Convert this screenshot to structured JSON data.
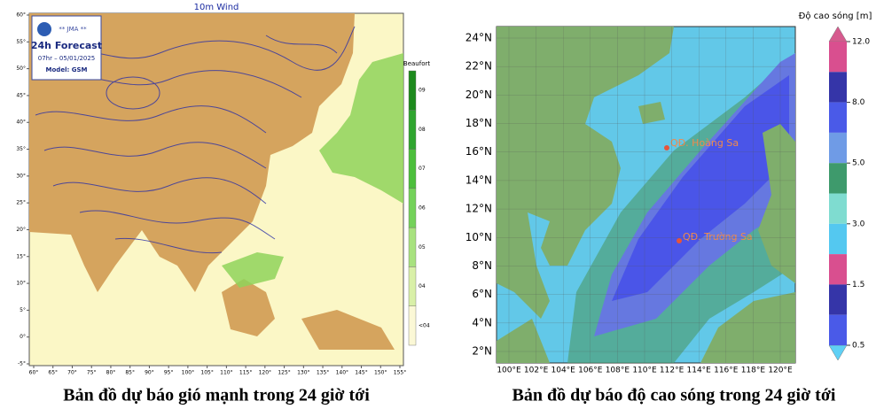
{
  "wind_map": {
    "title": "10m Wind",
    "logo": {
      "agency": "** JMA **",
      "product": "24h Forecast",
      "time": "07hr – 05/01/2025",
      "model": "Model: GSM"
    },
    "colorbar_title": "Beaufort",
    "colorbar_labels": [
      "09",
      "08",
      "07",
      "06",
      "05",
      "04",
      "<04"
    ],
    "lat_ticks": [
      {
        "value": 60,
        "label": "60°"
      },
      {
        "value": 55,
        "label": "55°"
      },
      {
        "value": 50,
        "label": "50°"
      },
      {
        "value": 45,
        "label": "45°"
      },
      {
        "value": 40,
        "label": "40°"
      },
      {
        "value": 35,
        "label": "35°"
      },
      {
        "value": 30,
        "label": "30°"
      },
      {
        "value": 25,
        "label": "25°"
      },
      {
        "value": 20,
        "label": "20°"
      },
      {
        "value": 15,
        "label": "15°"
      },
      {
        "value": 10,
        "label": "10°"
      },
      {
        "value": 5,
        "label": "5°"
      },
      {
        "value": 0,
        "label": "0°"
      },
      {
        "value": -5,
        "label": "-5°"
      }
    ],
    "lon_ticks": [
      {
        "value": 60,
        "label": "60°"
      },
      {
        "value": 65,
        "label": "65°"
      },
      {
        "value": 70,
        "label": "70°"
      },
      {
        "value": 75,
        "label": "75°"
      },
      {
        "value": 80,
        "label": "80°"
      },
      {
        "value": 85,
        "label": "85°"
      },
      {
        "value": 90,
        "label": "90°"
      },
      {
        "value": 95,
        "label": "95°"
      },
      {
        "value": 100,
        "label": "100°"
      },
      {
        "value": 105,
        "label": "105°"
      },
      {
        "value": 110,
        "label": "110°"
      },
      {
        "value": 115,
        "label": "115°"
      },
      {
        "value": 120,
        "label": "120°"
      },
      {
        "value": 125,
        "label": "125°"
      },
      {
        "value": 130,
        "label": "130°"
      },
      {
        "value": 135,
        "label": "135°"
      },
      {
        "value": 140,
        "label": "140°"
      },
      {
        "value": 145,
        "label": "145°"
      },
      {
        "value": 150,
        "label": "150°"
      },
      {
        "value": 155,
        "label": "155°"
      }
    ],
    "latlim": [
      -5,
      60
    ],
    "lonlim": [
      60,
      155
    ],
    "caption": "Bản đồ dự báo gió mạnh trong 24 giờ tới"
  },
  "wave_map": {
    "colorbar_title": "Độ cao sóng [m]",
    "colorbar_ticks": [
      {
        "value": 12,
        "label": "12.0"
      },
      {
        "value": 8,
        "label": "8.0"
      },
      {
        "value": 5,
        "label": "5.0"
      },
      {
        "value": 3,
        "label": "3.0"
      },
      {
        "value": 1.5,
        "label": "1.5"
      },
      {
        "value": 0.5,
        "label": "0.5"
      }
    ],
    "lat_ticks": [
      {
        "value": 24,
        "label": "24°N"
      },
      {
        "value": 22,
        "label": "22°N"
      },
      {
        "value": 20,
        "label": "20°N"
      },
      {
        "value": 18,
        "label": "18°N"
      },
      {
        "value": 16,
        "label": "16°N"
      },
      {
        "value": 14,
        "label": "14°N"
      },
      {
        "value": 12,
        "label": "12°N"
      },
      {
        "value": 10,
        "label": "10°N"
      },
      {
        "value": 8,
        "label": "8°N"
      },
      {
        "value": 6,
        "label": "6°N"
      },
      {
        "value": 4,
        "label": "4°N"
      },
      {
        "value": 2,
        "label": "2°N"
      }
    ],
    "lon_ticks": [
      {
        "value": 100,
        "label": "100°E"
      },
      {
        "value": 102,
        "label": "102°E"
      },
      {
        "value": 104,
        "label": "104°E"
      },
      {
        "value": 106,
        "label": "106°E"
      },
      {
        "value": 108,
        "label": "108°E"
      },
      {
        "value": 110,
        "label": "110°E"
      },
      {
        "value": 112,
        "label": "112°E"
      },
      {
        "value": 114,
        "label": "114°E"
      },
      {
        "value": 116,
        "label": "116°E"
      },
      {
        "value": 118,
        "label": "118°E"
      },
      {
        "value": 120,
        "label": "120°E"
      }
    ],
    "latlim": [
      2,
      24
    ],
    "lonlim": [
      100,
      120
    ],
    "places": [
      "QĐ. Hoàng Sa",
      "QĐ. Trường Sa"
    ],
    "caption": "Bản đồ dự báo độ cao sóng trong 24 giờ tới"
  }
}
